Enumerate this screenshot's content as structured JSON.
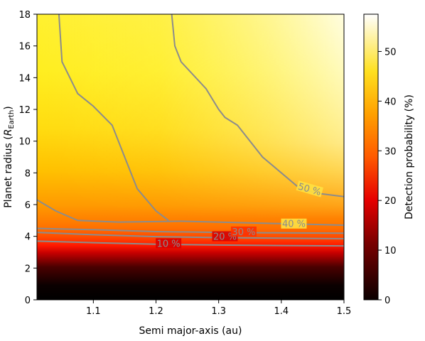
{
  "chart_data": {
    "type": "heatmap",
    "title": "",
    "xlabel": "Semi major-axis (au)",
    "ylabel_main": "Planet radius (",
    "ylabel_symbol": "R",
    "ylabel_sub": "Earth",
    "ylabel_close": ")",
    "xlim": [
      1.01,
      1.5
    ],
    "ylim": [
      0,
      18
    ],
    "x_ticks": [
      1.1,
      1.2,
      1.3,
      1.4,
      1.5
    ],
    "x_tick_labels": [
      "1.1",
      "1.2",
      "1.3",
      "1.4",
      "1.5"
    ],
    "y_ticks": [
      0,
      2,
      4,
      6,
      8,
      10,
      12,
      14,
      16,
      18
    ],
    "y_tick_labels": [
      "0",
      "2",
      "4",
      "6",
      "8",
      "10",
      "12",
      "14",
      "16",
      "18"
    ],
    "colorbar": {
      "label": "Detection probability (%)",
      "range": [
        0,
        57.5
      ],
      "ticks": [
        0,
        10,
        20,
        30,
        40,
        50
      ],
      "tick_labels": [
        "0",
        "10",
        "20",
        "30",
        "40",
        "50"
      ],
      "colormap": "hot"
    },
    "contours": [
      {
        "level": 10,
        "label": "10 %",
        "points": [
          [
            1.01,
            3.7
          ],
          [
            1.1,
            3.6
          ],
          [
            1.2,
            3.5
          ],
          [
            1.3,
            3.45
          ],
          [
            1.4,
            3.42
          ],
          [
            1.5,
            3.4
          ]
        ],
        "label_at": [
          1.22,
          3.52
        ]
      },
      {
        "level": 20,
        "label": "20 %",
        "points": [
          [
            1.01,
            4.25
          ],
          [
            1.1,
            4.1
          ],
          [
            1.2,
            3.98
          ],
          [
            1.3,
            3.92
          ],
          [
            1.4,
            3.88
          ],
          [
            1.5,
            3.85
          ]
        ],
        "label_at": [
          1.31,
          3.96
        ]
      },
      {
        "level": 30,
        "label": "30 %",
        "points": [
          [
            1.01,
            4.5
          ],
          [
            1.1,
            4.42
          ],
          [
            1.2,
            4.3
          ],
          [
            1.3,
            4.25
          ],
          [
            1.4,
            4.22
          ],
          [
            1.5,
            4.2
          ]
        ],
        "label_at": [
          1.34,
          4.26
        ]
      },
      {
        "level": 40,
        "label": "40 %",
        "points": [
          [
            1.01,
            6.3
          ],
          [
            1.04,
            5.6
          ],
          [
            1.075,
            5.0
          ],
          [
            1.14,
            4.9
          ],
          [
            1.24,
            4.95
          ],
          [
            1.4,
            4.8
          ],
          [
            1.5,
            4.7
          ]
        ],
        "label_at": [
          1.42,
          4.76
        ]
      },
      {
        "level": 50,
        "label": "50 %",
        "points": [
          [
            1.045,
            18
          ],
          [
            1.05,
            15
          ],
          [
            1.075,
            13
          ],
          [
            1.1,
            12.2
          ],
          [
            1.13,
            11
          ],
          [
            1.15,
            9
          ],
          [
            1.17,
            7
          ],
          [
            1.2,
            5.6
          ],
          [
            1.22,
            5.0
          ]
        ],
        "label_at": null
      },
      {
        "level": 50,
        "label": "50 %",
        "points": [
          [
            1.225,
            18
          ],
          [
            1.23,
            16
          ],
          [
            1.24,
            15
          ],
          [
            1.28,
            13.3
          ],
          [
            1.3,
            12
          ],
          [
            1.31,
            11.5
          ],
          [
            1.33,
            11
          ],
          [
            1.35,
            10
          ],
          [
            1.37,
            9
          ],
          [
            1.4,
            8
          ],
          [
            1.43,
            7
          ],
          [
            1.46,
            6.7
          ],
          [
            1.5,
            6.5
          ]
        ],
        "label_at": [
          1.445,
          6.95
        ]
      }
    ]
  }
}
